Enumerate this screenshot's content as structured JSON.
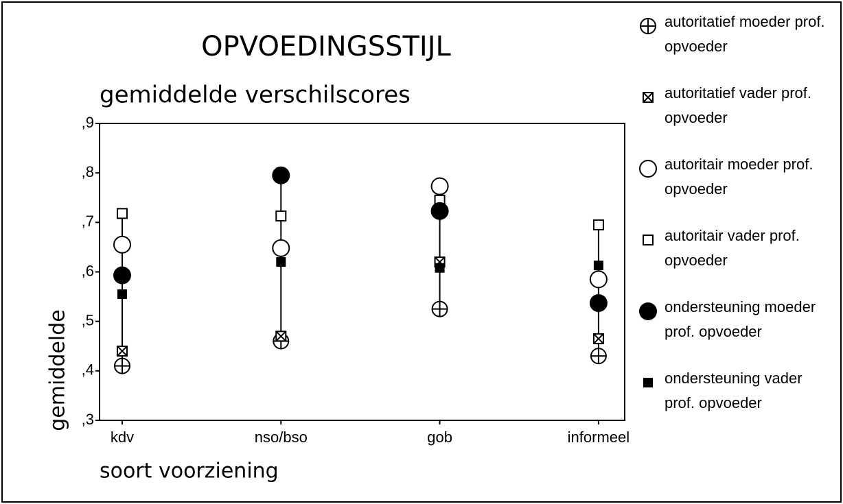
{
  "chart_data": {
    "type": "high-low",
    "title": "OPVOEDINGSSTIJL",
    "subtitle": "gemiddelde verschilscores",
    "y_label": "gemiddelde",
    "x_label": "soort voorziening",
    "categories": [
      "kdv",
      "nso/bso",
      "gob",
      "informeel"
    ],
    "ylim": [
      0.3,
      0.9
    ],
    "yticks": [
      {
        "value": 0.3,
        "label": ",3"
      },
      {
        "value": 0.4,
        "label": ",4"
      },
      {
        "value": 0.5,
        "label": ",5"
      },
      {
        "value": 0.6,
        "label": ",6"
      },
      {
        "value": 0.7,
        "label": ",7"
      },
      {
        "value": 0.8,
        "label": ",8"
      },
      {
        "value": 0.9,
        "label": ",9"
      }
    ],
    "series": [
      {
        "name": "autoritatief moeder prof. opvoeder",
        "marker": "circle-plus",
        "color": "#000000",
        "values": [
          0.41,
          0.46,
          0.525,
          0.43
        ]
      },
      {
        "name": "autoritatief vader prof. opvoeder",
        "marker": "square-x",
        "color": "#000000",
        "values": [
          0.44,
          0.47,
          0.62,
          0.465
        ]
      },
      {
        "name": "autoritair moeder prof. opvoeder",
        "marker": "circle-open",
        "color": "#000000",
        "values": [
          0.655,
          0.648,
          0.773,
          0.585
        ]
      },
      {
        "name": "autoritair vader prof. opvoeder",
        "marker": "square-open",
        "color": "#000000",
        "values": [
          0.718,
          0.713,
          0.745,
          0.695
        ]
      },
      {
        "name": "ondersteuning moeder prof. opvoeder",
        "marker": "circle-filled",
        "color": "#000000",
        "values": [
          0.593,
          0.795,
          0.723,
          0.537
        ]
      },
      {
        "name": "ondersteuning vader prof. opvoeder",
        "marker": "square-filled",
        "color": "#000000",
        "values": [
          0.555,
          0.62,
          0.608,
          0.613
        ]
      }
    ]
  }
}
